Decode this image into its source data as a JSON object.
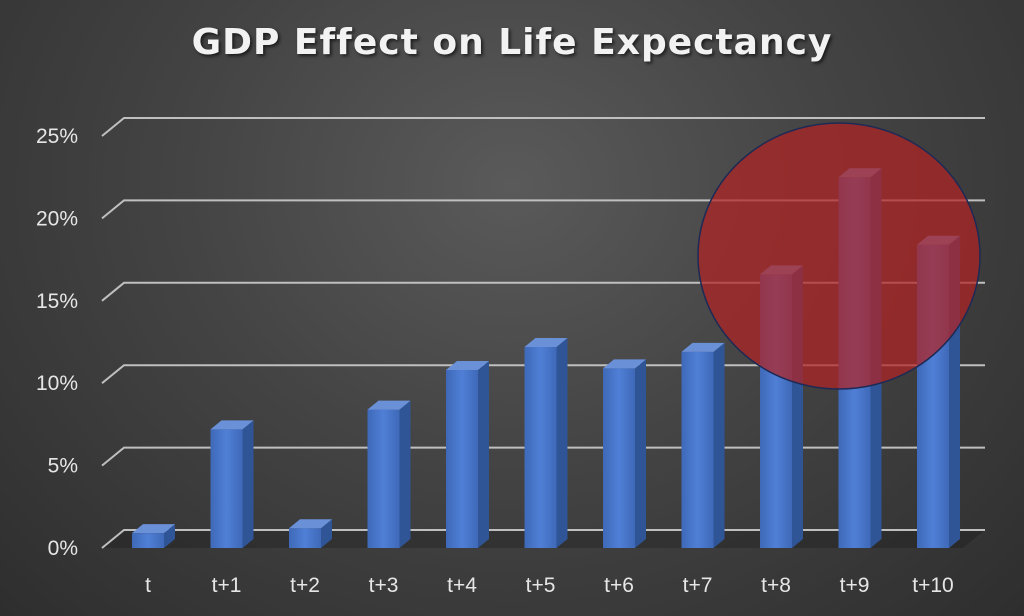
{
  "chart_data": {
    "type": "bar",
    "title": "GDP Effect on Life Expectancy",
    "xlabel": "",
    "ylabel": "",
    "categories": [
      "t",
      "t+1",
      "t+2",
      "t+3",
      "t+4",
      "t+5",
      "t+6",
      "t+7",
      "t+8",
      "t+9",
      "t+10"
    ],
    "values": [
      0.9,
      7.2,
      1.2,
      8.4,
      10.8,
      12.2,
      10.9,
      11.9,
      16.6,
      22.5,
      18.4
    ],
    "value_unit": "%",
    "ylim": [
      0,
      25
    ],
    "yticks": [
      "0%",
      "5%",
      "10%",
      "15%",
      "20%",
      "25%"
    ],
    "grid": true,
    "legend": "none",
    "annotation": "highlight-circle-over-t+8-to-t+10"
  },
  "colors": {
    "bar_front": "#4472c4",
    "bar_side": "#2f5597",
    "bar_top": "#6a90d8",
    "gridline": "#bfbfbf",
    "text": "#e6e6e6",
    "highlight": "#b22222"
  }
}
